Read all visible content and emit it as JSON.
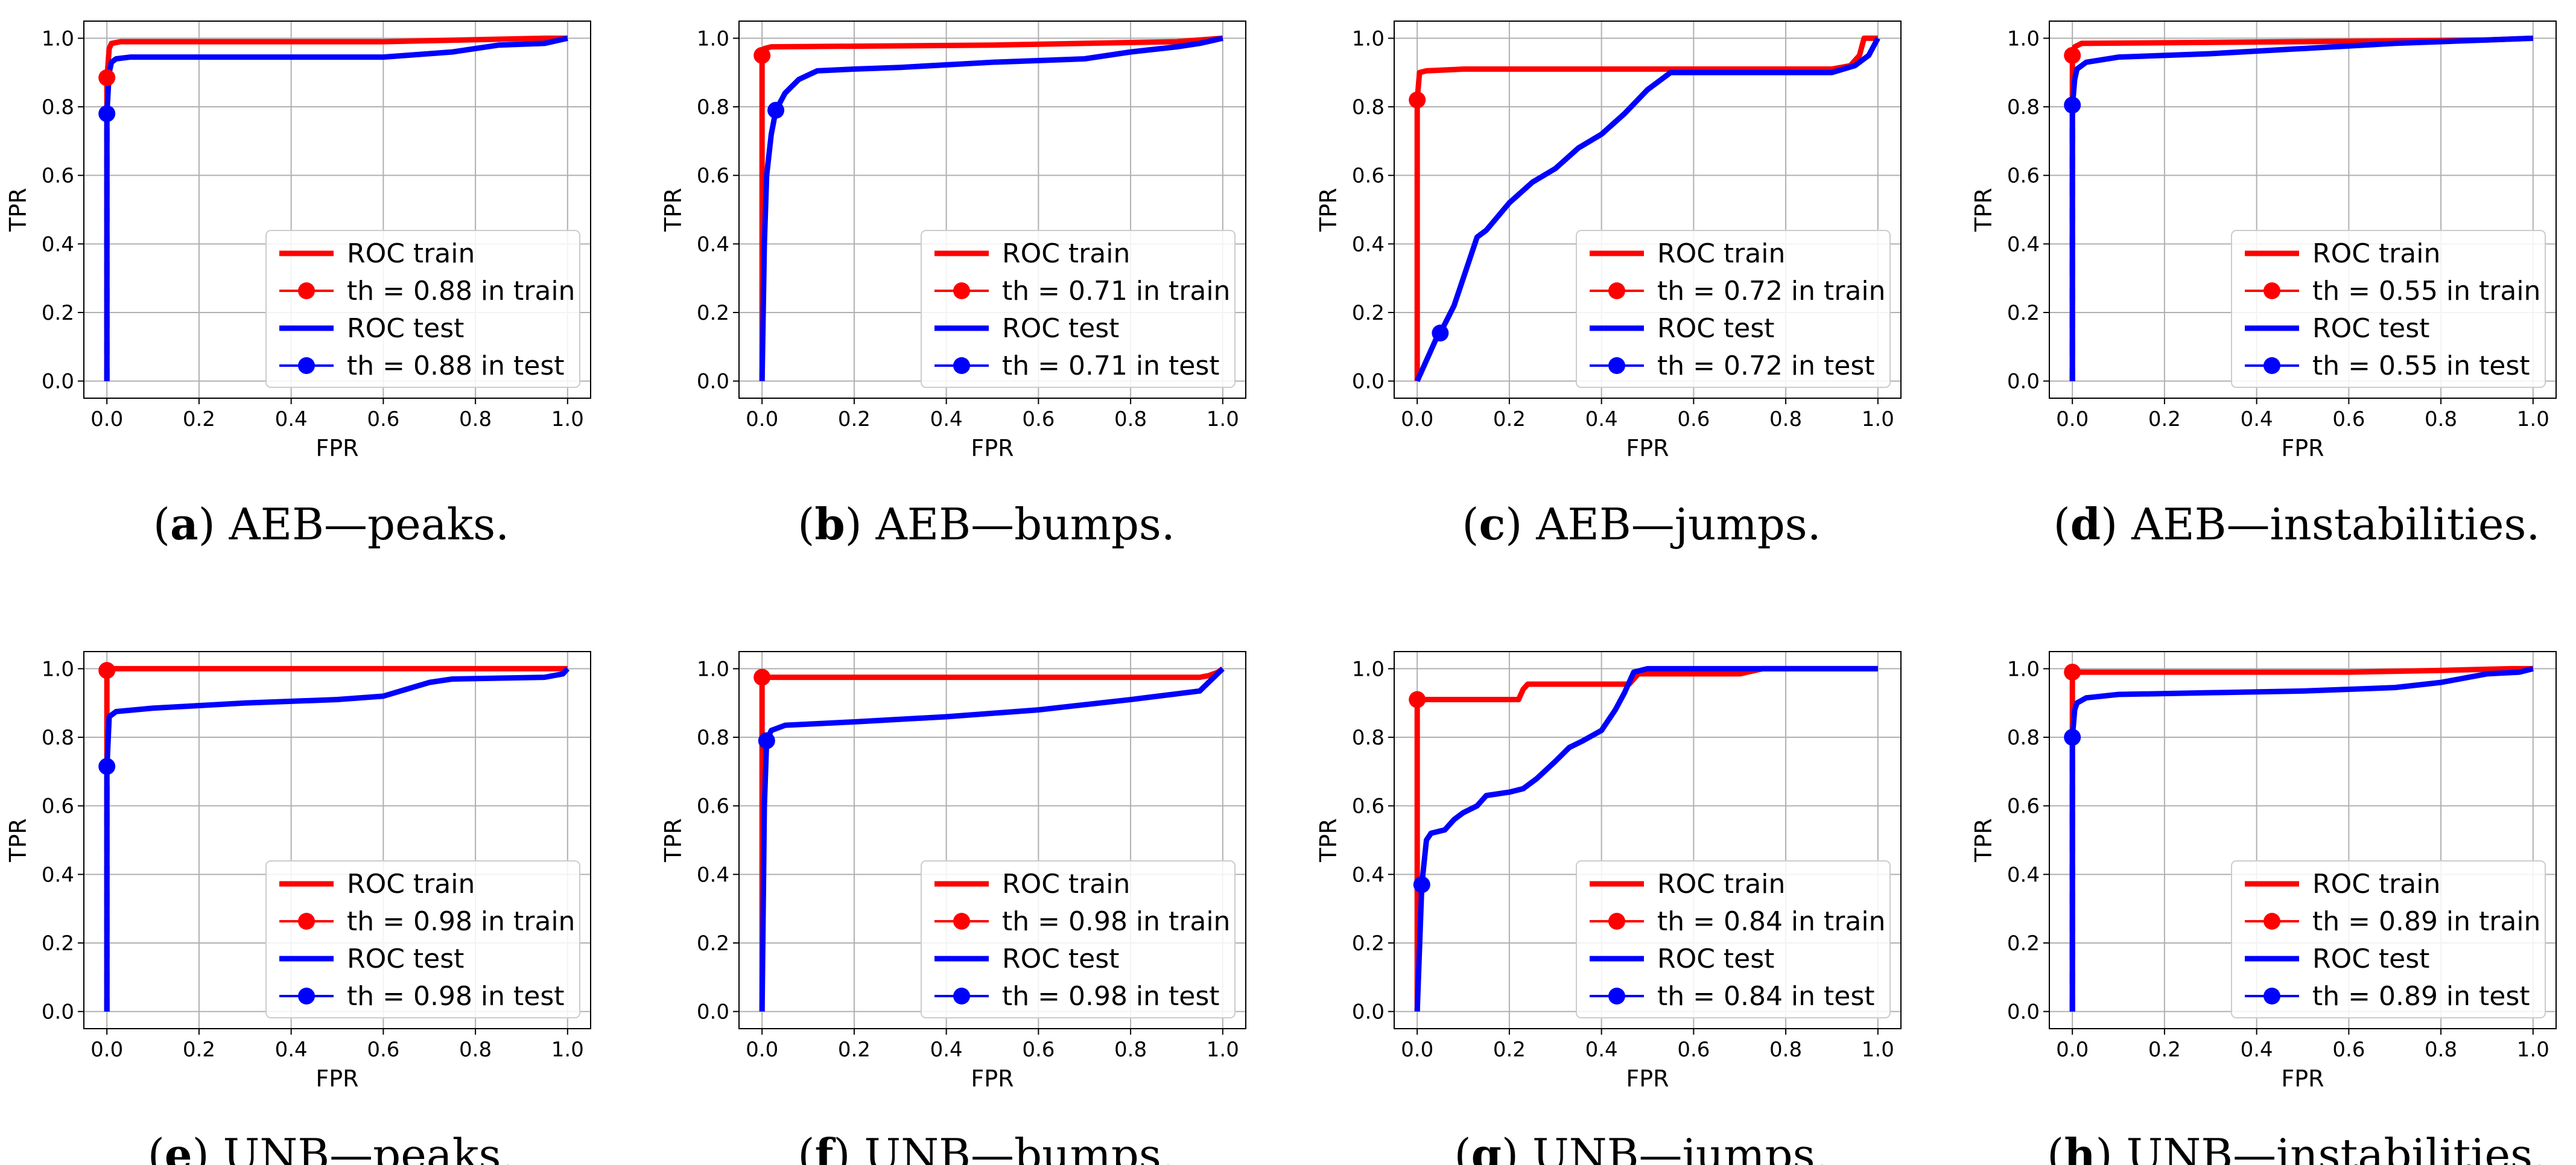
{
  "colors": {
    "train": "#ff0000",
    "test": "#0000ff",
    "grid": "#b0b0b0",
    "axes": "#000000",
    "legend_border": "#cccccc"
  },
  "chart_data": [
    {
      "type": "line",
      "caption_letter": "a",
      "caption_text": "AEB—peaks.",
      "xlabel": "FPR",
      "ylabel": "TPR",
      "xlim": [
        -0.05,
        1.05
      ],
      "ylim": [
        -0.05,
        1.05
      ],
      "xticks": [
        0.0,
        0.2,
        0.4,
        0.6,
        0.8,
        1.0
      ],
      "yticks": [
        0.0,
        0.2,
        0.4,
        0.6,
        0.8,
        1.0
      ],
      "tick_labels": [
        "0.0",
        "0.2",
        "0.4",
        "0.6",
        "0.8",
        "1.0"
      ],
      "grid": true,
      "legend_position": "lower-right",
      "series": [
        {
          "name": "ROC train",
          "role": "train_curve",
          "x": [
            0,
            0,
            0.005,
            0.01,
            0.03,
            0.6,
            0.95,
            1.0
          ],
          "y": [
            0,
            0.88,
            0.97,
            0.985,
            0.99,
            0.99,
            1.0,
            1.0
          ]
        },
        {
          "name": "th = 0.88 in train",
          "role": "train_point",
          "x": [
            0.0
          ],
          "y": [
            0.885
          ]
        },
        {
          "name": "ROC test",
          "role": "test_curve",
          "x": [
            0,
            0,
            0.005,
            0.01,
            0.02,
            0.05,
            0.6,
            0.75,
            0.85,
            0.95,
            1.0
          ],
          "y": [
            0,
            0.78,
            0.9,
            0.93,
            0.94,
            0.945,
            0.945,
            0.96,
            0.98,
            0.985,
            1.0
          ]
        },
        {
          "name": "th = 0.88 in test",
          "role": "test_point",
          "x": [
            0.0
          ],
          "y": [
            0.78
          ]
        }
      ]
    },
    {
      "type": "line",
      "caption_letter": "b",
      "caption_text": "AEB—bumps.",
      "xlabel": "FPR",
      "ylabel": "TPR",
      "xlim": [
        -0.05,
        1.05
      ],
      "ylim": [
        -0.05,
        1.05
      ],
      "xticks": [
        0.0,
        0.2,
        0.4,
        0.6,
        0.8,
        1.0
      ],
      "yticks": [
        0.0,
        0.2,
        0.4,
        0.6,
        0.8,
        1.0
      ],
      "tick_labels": [
        "0.0",
        "0.2",
        "0.4",
        "0.6",
        "0.8",
        "1.0"
      ],
      "grid": true,
      "legend_position": "lower-right",
      "series": [
        {
          "name": "ROC train",
          "role": "train_curve",
          "x": [
            0,
            0,
            0.005,
            0.02,
            0.5,
            0.9,
            1.0
          ],
          "y": [
            0,
            0.95,
            0.97,
            0.975,
            0.98,
            0.99,
            1.0
          ]
        },
        {
          "name": "th = 0.71 in train",
          "role": "train_point",
          "x": [
            0.0
          ],
          "y": [
            0.95
          ]
        },
        {
          "name": "ROC test",
          "role": "test_curve",
          "x": [
            0,
            0.005,
            0.01,
            0.02,
            0.03,
            0.05,
            0.08,
            0.12,
            0.2,
            0.3,
            0.5,
            0.7,
            0.8,
            0.9,
            0.95,
            1.0
          ],
          "y": [
            0,
            0.4,
            0.6,
            0.72,
            0.79,
            0.84,
            0.88,
            0.905,
            0.91,
            0.915,
            0.93,
            0.94,
            0.96,
            0.975,
            0.985,
            1.0
          ]
        },
        {
          "name": "th = 0.71 in test",
          "role": "test_point",
          "x": [
            0.03
          ],
          "y": [
            0.79
          ]
        }
      ]
    },
    {
      "type": "line",
      "caption_letter": "c",
      "caption_text": "AEB—jumps.",
      "xlabel": "FPR",
      "ylabel": "TPR",
      "xlim": [
        -0.05,
        1.05
      ],
      "ylim": [
        -0.05,
        1.05
      ],
      "xticks": [
        0.0,
        0.2,
        0.4,
        0.6,
        0.8,
        1.0
      ],
      "yticks": [
        0.0,
        0.2,
        0.4,
        0.6,
        0.8,
        1.0
      ],
      "tick_labels": [
        "0.0",
        "0.2",
        "0.4",
        "0.6",
        "0.8",
        "1.0"
      ],
      "grid": true,
      "legend_position": "lower-right",
      "series": [
        {
          "name": "ROC train",
          "role": "train_curve",
          "x": [
            0,
            0,
            0.005,
            0.02,
            0.1,
            0.5,
            0.9,
            0.94,
            0.96,
            0.97,
            1.0
          ],
          "y": [
            0,
            0.82,
            0.9,
            0.905,
            0.91,
            0.91,
            0.91,
            0.92,
            0.95,
            1.0,
            1.0
          ]
        },
        {
          "name": "th = 0.72 in train",
          "role": "train_point",
          "x": [
            0.0
          ],
          "y": [
            0.82
          ]
        },
        {
          "name": "ROC test",
          "role": "test_curve",
          "x": [
            0,
            0.01,
            0.02,
            0.04,
            0.05,
            0.08,
            0.1,
            0.13,
            0.15,
            0.2,
            0.25,
            0.3,
            0.35,
            0.4,
            0.45,
            0.5,
            0.55,
            0.6,
            0.7,
            0.8,
            0.9,
            0.95,
            0.98,
            1.0
          ],
          "y": [
            0,
            0.03,
            0.06,
            0.12,
            0.14,
            0.22,
            0.3,
            0.42,
            0.44,
            0.52,
            0.58,
            0.62,
            0.68,
            0.72,
            0.78,
            0.85,
            0.9,
            0.9,
            0.9,
            0.9,
            0.9,
            0.92,
            0.95,
            1.0
          ]
        },
        {
          "name": "th = 0.72 in test",
          "role": "test_point",
          "x": [
            0.05
          ],
          "y": [
            0.14
          ]
        }
      ]
    },
    {
      "type": "line",
      "caption_letter": "d",
      "caption_text": "AEB—instabilities.",
      "xlabel": "FPR",
      "ylabel": "TPR",
      "xlim": [
        -0.05,
        1.05
      ],
      "ylim": [
        -0.05,
        1.05
      ],
      "xticks": [
        0.0,
        0.2,
        0.4,
        0.6,
        0.8,
        1.0
      ],
      "yticks": [
        0.0,
        0.2,
        0.4,
        0.6,
        0.8,
        1.0
      ],
      "tick_labels": [
        "0.0",
        "0.2",
        "0.4",
        "0.6",
        "0.8",
        "1.0"
      ],
      "grid": true,
      "legend_position": "lower-right",
      "series": [
        {
          "name": "ROC train",
          "role": "train_curve",
          "x": [
            0,
            0,
            0.005,
            0.02,
            0.5,
            0.9,
            1.0
          ],
          "y": [
            0,
            0.95,
            0.975,
            0.985,
            0.99,
            0.995,
            1.0
          ]
        },
        {
          "name": "th = 0.55 in train",
          "role": "train_point",
          "x": [
            0.0
          ],
          "y": [
            0.95
          ]
        },
        {
          "name": "ROC test",
          "role": "test_curve",
          "x": [
            0,
            0,
            0.005,
            0.01,
            0.03,
            0.1,
            0.3,
            0.5,
            0.7,
            0.9,
            1.0
          ],
          "y": [
            0,
            0.8,
            0.88,
            0.91,
            0.93,
            0.945,
            0.955,
            0.97,
            0.985,
            0.995,
            1.0
          ]
        },
        {
          "name": "th = 0.55 in test",
          "role": "test_point",
          "x": [
            0.0
          ],
          "y": [
            0.805
          ]
        }
      ]
    },
    {
      "type": "line",
      "caption_letter": "e",
      "caption_text": "UNB—peaks.",
      "xlabel": "FPR",
      "ylabel": "TPR",
      "xlim": [
        -0.05,
        1.05
      ],
      "ylim": [
        -0.05,
        1.05
      ],
      "xticks": [
        0.0,
        0.2,
        0.4,
        0.6,
        0.8,
        1.0
      ],
      "yticks": [
        0.0,
        0.2,
        0.4,
        0.6,
        0.8,
        1.0
      ],
      "tick_labels": [
        "0.0",
        "0.2",
        "0.4",
        "0.6",
        "0.8",
        "1.0"
      ],
      "grid": true,
      "legend_position": "lower-right",
      "series": [
        {
          "name": "ROC train",
          "role": "train_curve",
          "x": [
            0,
            0,
            0.01,
            1.0
          ],
          "y": [
            0,
            0.995,
            1.0,
            1.0
          ]
        },
        {
          "name": "th = 0.98 in train",
          "role": "train_point",
          "x": [
            0.0
          ],
          "y": [
            0.995
          ]
        },
        {
          "name": "ROC test",
          "role": "test_curve",
          "x": [
            0,
            0,
            0.005,
            0.02,
            0.1,
            0.3,
            0.5,
            0.6,
            0.65,
            0.7,
            0.75,
            0.95,
            0.99,
            1.0
          ],
          "y": [
            0,
            0.71,
            0.86,
            0.875,
            0.885,
            0.9,
            0.91,
            0.92,
            0.94,
            0.96,
            0.97,
            0.975,
            0.985,
            1.0
          ]
        },
        {
          "name": "th = 0.98 in test",
          "role": "test_point",
          "x": [
            0.0
          ],
          "y": [
            0.715
          ]
        }
      ]
    },
    {
      "type": "line",
      "caption_letter": "f",
      "caption_text": "UNB—bumps.",
      "xlabel": "FPR",
      "ylabel": "TPR",
      "xlim": [
        -0.05,
        1.05
      ],
      "ylim": [
        -0.05,
        1.05
      ],
      "xticks": [
        0.0,
        0.2,
        0.4,
        0.6,
        0.8,
        1.0
      ],
      "yticks": [
        0.0,
        0.2,
        0.4,
        0.6,
        0.8,
        1.0
      ],
      "tick_labels": [
        "0.0",
        "0.2",
        "0.4",
        "0.6",
        "0.8",
        "1.0"
      ],
      "grid": true,
      "legend_position": "lower-right",
      "series": [
        {
          "name": "ROC train",
          "role": "train_curve",
          "x": [
            0,
            0,
            0.005,
            0.95,
            0.97,
            0.99,
            1.0
          ],
          "y": [
            0,
            0.97,
            0.975,
            0.975,
            0.98,
            0.99,
            1.0
          ]
        },
        {
          "name": "th = 0.98 in train",
          "role": "train_point",
          "x": [
            0.0
          ],
          "y": [
            0.975
          ]
        },
        {
          "name": "ROC test",
          "role": "test_curve",
          "x": [
            0,
            0.005,
            0.01,
            0.02,
            0.05,
            0.2,
            0.4,
            0.6,
            0.8,
            0.95,
            1.0
          ],
          "y": [
            0,
            0.6,
            0.79,
            0.82,
            0.835,
            0.845,
            0.86,
            0.88,
            0.91,
            0.935,
            1.0
          ]
        },
        {
          "name": "th = 0.98 in test",
          "role": "test_point",
          "x": [
            0.01
          ],
          "y": [
            0.79
          ]
        }
      ]
    },
    {
      "type": "line",
      "caption_letter": "g",
      "caption_text": "UNB—jumps.",
      "xlabel": "FPR",
      "ylabel": "TPR",
      "xlim": [
        -0.05,
        1.05
      ],
      "ylim": [
        -0.05,
        1.05
      ],
      "xticks": [
        0.0,
        0.2,
        0.4,
        0.6,
        0.8,
        1.0
      ],
      "yticks": [
        0.0,
        0.2,
        0.4,
        0.6,
        0.8,
        1.0
      ],
      "tick_labels": [
        "0.0",
        "0.2",
        "0.4",
        "0.6",
        "0.8",
        "1.0"
      ],
      "grid": true,
      "legend_position": "lower-right",
      "series": [
        {
          "name": "ROC train",
          "role": "train_curve",
          "x": [
            0,
            0,
            0.22,
            0.23,
            0.24,
            0.46,
            0.48,
            0.7,
            0.75,
            1.0
          ],
          "y": [
            0,
            0.91,
            0.91,
            0.94,
            0.955,
            0.955,
            0.985,
            0.985,
            1.0,
            1.0
          ]
        },
        {
          "name": "th = 0.84 in train",
          "role": "train_point",
          "x": [
            0.0
          ],
          "y": [
            0.91
          ]
        },
        {
          "name": "ROC test",
          "role": "test_curve",
          "x": [
            0,
            0.01,
            0.02,
            0.03,
            0.06,
            0.08,
            0.1,
            0.13,
            0.15,
            0.2,
            0.23,
            0.26,
            0.3,
            0.33,
            0.36,
            0.4,
            0.43,
            0.45,
            0.47,
            0.5,
            0.7,
            1.0
          ],
          "y": [
            0,
            0.37,
            0.5,
            0.52,
            0.53,
            0.56,
            0.58,
            0.6,
            0.63,
            0.64,
            0.65,
            0.68,
            0.73,
            0.77,
            0.79,
            0.82,
            0.88,
            0.93,
            0.99,
            1.0,
            1.0,
            1.0
          ]
        },
        {
          "name": "th = 0.84 in test",
          "role": "test_point",
          "x": [
            0.01
          ],
          "y": [
            0.37
          ]
        }
      ]
    },
    {
      "type": "line",
      "caption_letter": "h",
      "caption_text": "UNB—instabilities.",
      "xlabel": "FPR",
      "ylabel": "TPR",
      "xlim": [
        -0.05,
        1.05
      ],
      "ylim": [
        -0.05,
        1.05
      ],
      "xticks": [
        0.0,
        0.2,
        0.4,
        0.6,
        0.8,
        1.0
      ],
      "yticks": [
        0.0,
        0.2,
        0.4,
        0.6,
        0.8,
        1.0
      ],
      "tick_labels": [
        "0.0",
        "0.2",
        "0.4",
        "0.6",
        "0.8",
        "1.0"
      ],
      "grid": true,
      "legend_position": "lower-right",
      "series": [
        {
          "name": "ROC train",
          "role": "train_curve",
          "x": [
            0,
            0,
            0.01,
            0.6,
            0.8,
            0.95,
            1.0
          ],
          "y": [
            0,
            0.985,
            0.99,
            0.99,
            0.995,
            1.0,
            1.0
          ]
        },
        {
          "name": "th = 0.89 in train",
          "role": "train_point",
          "x": [
            0.0
          ],
          "y": [
            0.99
          ]
        },
        {
          "name": "ROC test",
          "role": "test_curve",
          "x": [
            0,
            0,
            0.005,
            0.01,
            0.03,
            0.1,
            0.3,
            0.5,
            0.7,
            0.8,
            0.9,
            0.97,
            1.0
          ],
          "y": [
            0,
            0.8,
            0.88,
            0.9,
            0.915,
            0.925,
            0.93,
            0.935,
            0.945,
            0.96,
            0.985,
            0.99,
            1.0
          ]
        },
        {
          "name": "th = 0.89 in test",
          "role": "test_point",
          "x": [
            0.0
          ],
          "y": [
            0.8
          ]
        }
      ]
    }
  ]
}
